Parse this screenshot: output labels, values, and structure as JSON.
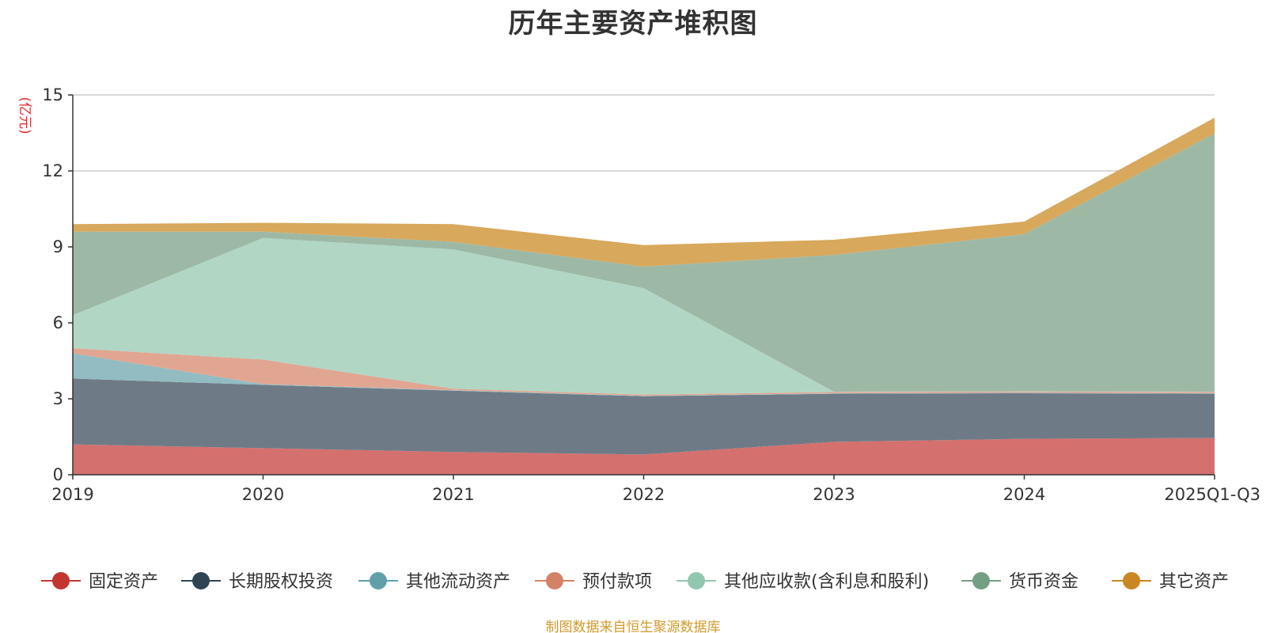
{
  "chart_data": {
    "type": "area",
    "stacked": true,
    "title": "历年主要资产堆积图",
    "ylabel": "(亿元)",
    "ylim": [
      0,
      15
    ],
    "yticks": [
      0,
      3,
      6,
      9,
      12,
      15
    ],
    "grid": true,
    "legend_position": "bottom",
    "categories": [
      "2019",
      "2020",
      "2021",
      "2022",
      "2023",
      "2024",
      "2025Q1-Q3"
    ],
    "series": [
      {
        "name": "固定资产",
        "color": "#c23531",
        "fill": "#d4706e",
        "values": [
          1.2,
          1.05,
          0.9,
          0.8,
          1.3,
          1.42,
          1.45
        ]
      },
      {
        "name": "长期股权投资",
        "color": "#2f4554",
        "fill": "#6e7b87",
        "values": [
          2.6,
          2.5,
          2.42,
          2.3,
          1.9,
          1.8,
          1.75
        ]
      },
      {
        "name": "其他流动资产",
        "color": "#61a0a8",
        "fill": "#92bcc2",
        "values": [
          1.0,
          0.03,
          0.02,
          0.02,
          0.02,
          0.02,
          0.02
        ]
      },
      {
        "name": "预付款项",
        "color": "#d48265",
        "fill": "#e1a692",
        "values": [
          0.2,
          0.97,
          0.06,
          0.05,
          0.05,
          0.05,
          0.05
        ]
      },
      {
        "name": "其他应收款(含利息和股利)",
        "color": "#91c7ae",
        "fill": "#b1d6c4",
        "values": [
          1.3,
          4.8,
          5.5,
          4.2,
          0.01,
          0.01,
          0.01
        ]
      },
      {
        "name": "货币资金",
        "color": "#749f83",
        "fill": "#9db9a6",
        "values": [
          3.3,
          0.25,
          0.3,
          0.85,
          5.4,
          6.2,
          10.2
        ]
      },
      {
        "name": "其它资产",
        "color": "#ca8622",
        "fill": "#d8a85c",
        "values": [
          0.3,
          0.35,
          0.7,
          0.85,
          0.6,
          0.5,
          0.62
        ]
      }
    ]
  },
  "source_note": "制图数据来自恒生聚源数据库"
}
